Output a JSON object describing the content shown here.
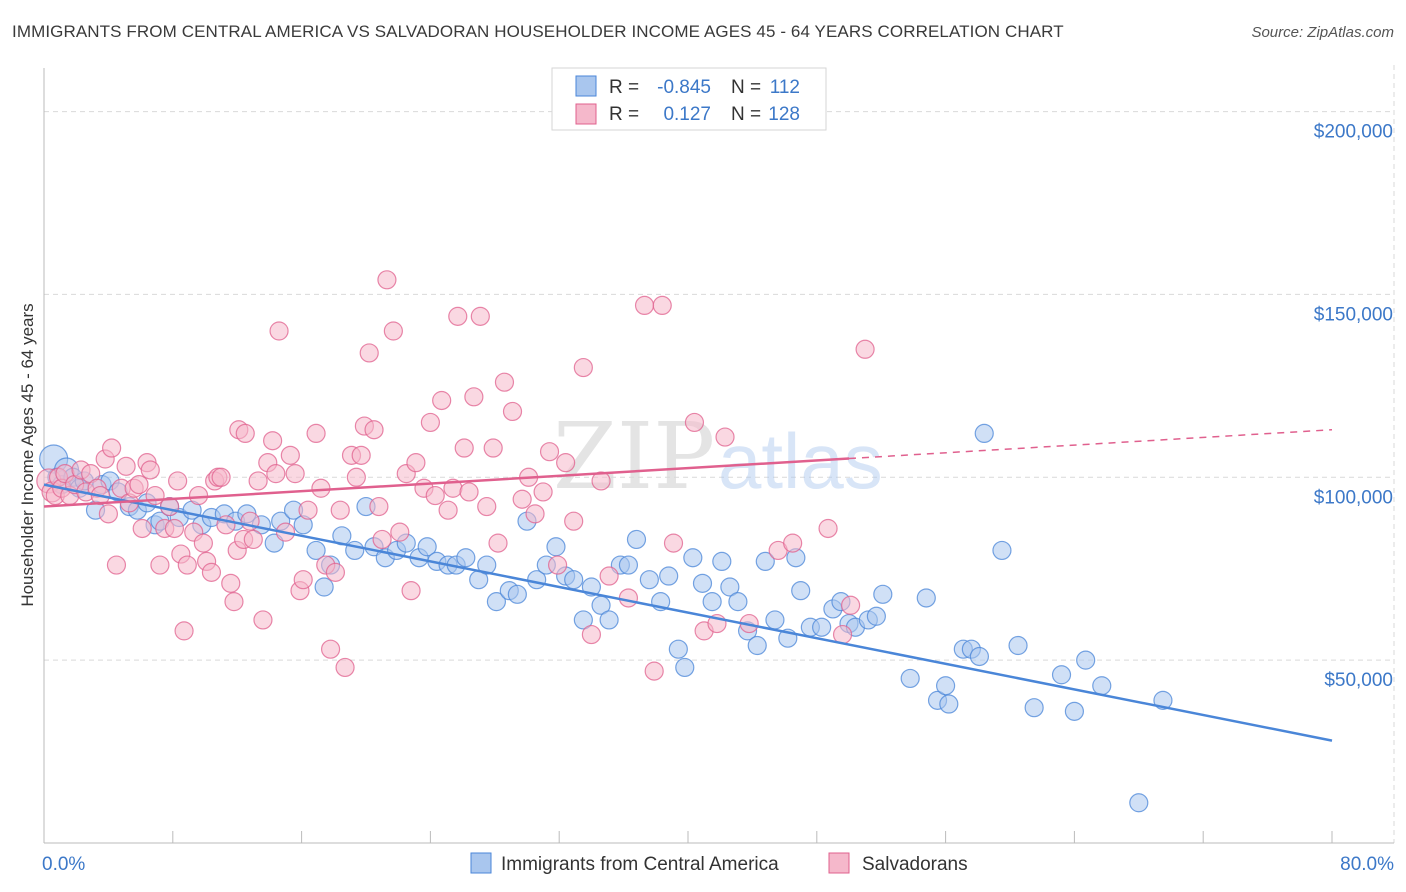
{
  "title": "IMMIGRANTS FROM CENTRAL AMERICA VS SALVADORAN HOUSEHOLDER INCOME AGES 45 - 64 YEARS CORRELATION CHART",
  "source": "Source: ZipAtlas.com",
  "watermark": {
    "zip": "ZIP",
    "atlas": "atlas"
  },
  "colors": {
    "blue": "#4a86d8",
    "blue_fill": "#a9c6ee",
    "pink": "#e0608e",
    "pink_fill": "#f5b8cb",
    "grid": "#d9d9d9",
    "axis_text": "#3c78c8"
  },
  "legend": {
    "rows": [
      {
        "r_label": "R =",
        "r_value": "-0.845",
        "n_label": "N =",
        "n_value": "112"
      },
      {
        "r_label": "R =",
        "r_value": "0.127",
        "n_label": "N =",
        "n_value": "128"
      }
    ]
  },
  "chart_data": {
    "type": "scatter",
    "xlabel": "",
    "ylabel": "Householder Income Ages 45 - 64 years",
    "xlim": [
      0,
      80
    ],
    "ylim": [
      0,
      210000
    ],
    "x_tick_labels": {
      "min": "0.0%",
      "max": "80.0%"
    },
    "y_ticks": [
      {
        "value": 50000,
        "label": "$50,000"
      },
      {
        "value": 100000,
        "label": "$100,000"
      },
      {
        "value": 150000,
        "label": "$150,000"
      },
      {
        "value": 200000,
        "label": "$200,000"
      }
    ],
    "grid": true,
    "legend_position": "top-center",
    "series": [
      {
        "name": "Immigrants from Central America",
        "r": -0.845,
        "n": 112,
        "trend": {
          "x0": 0,
          "y0": 98000,
          "x1": 80,
          "y1": 28000,
          "solid_until": 80
        },
        "points": [
          [
            0.6,
            105000
          ],
          [
            0.8,
            100000
          ],
          [
            1.1,
            98000
          ],
          [
            1.4,
            102000
          ],
          [
            1.8,
            100000
          ],
          [
            2.2,
            97000
          ],
          [
            2.5,
            99000
          ],
          [
            3.2,
            91000
          ],
          [
            3.6,
            98000
          ],
          [
            4.1,
            99000
          ],
          [
            4.6,
            96000
          ],
          [
            5.3,
            92000
          ],
          [
            5.8,
            91000
          ],
          [
            6.4,
            93000
          ],
          [
            6.9,
            87000
          ],
          [
            7.2,
            88000
          ],
          [
            7.8,
            92000
          ],
          [
            8.4,
            89000
          ],
          [
            9.2,
            91000
          ],
          [
            9.8,
            87000
          ],
          [
            10.4,
            89000
          ],
          [
            11.2,
            90000
          ],
          [
            11.9,
            88000
          ],
          [
            12.6,
            90000
          ],
          [
            13.5,
            87000
          ],
          [
            14.3,
            82000
          ],
          [
            14.7,
            88000
          ],
          [
            15.5,
            91000
          ],
          [
            16.1,
            87000
          ],
          [
            16.9,
            80000
          ],
          [
            17.4,
            70000
          ],
          [
            17.8,
            76000
          ],
          [
            18.5,
            84000
          ],
          [
            19.3,
            80000
          ],
          [
            20.0,
            92000
          ],
          [
            20.5,
            81000
          ],
          [
            21.2,
            78000
          ],
          [
            21.9,
            80000
          ],
          [
            22.5,
            82000
          ],
          [
            23.3,
            78000
          ],
          [
            23.8,
            81000
          ],
          [
            24.4,
            77000
          ],
          [
            25.1,
            76000
          ],
          [
            25.6,
            76000
          ],
          [
            26.2,
            78000
          ],
          [
            27.0,
            72000
          ],
          [
            27.5,
            76000
          ],
          [
            28.1,
            66000
          ],
          [
            28.9,
            69000
          ],
          [
            29.4,
            68000
          ],
          [
            30.0,
            88000
          ],
          [
            30.6,
            72000
          ],
          [
            31.2,
            76000
          ],
          [
            31.8,
            81000
          ],
          [
            32.4,
            73000
          ],
          [
            32.9,
            72000
          ],
          [
            33.5,
            61000
          ],
          [
            34.0,
            70000
          ],
          [
            34.6,
            65000
          ],
          [
            35.1,
            61000
          ],
          [
            35.8,
            76000
          ],
          [
            36.3,
            76000
          ],
          [
            36.8,
            83000
          ],
          [
            37.6,
            72000
          ],
          [
            38.3,
            66000
          ],
          [
            38.8,
            73000
          ],
          [
            39.4,
            53000
          ],
          [
            39.8,
            48000
          ],
          [
            40.3,
            78000
          ],
          [
            40.9,
            71000
          ],
          [
            41.5,
            66000
          ],
          [
            42.1,
            77000
          ],
          [
            42.6,
            70000
          ],
          [
            43.1,
            66000
          ],
          [
            43.7,
            58000
          ],
          [
            44.3,
            54000
          ],
          [
            44.8,
            77000
          ],
          [
            45.4,
            61000
          ],
          [
            46.2,
            56000
          ],
          [
            46.7,
            78000
          ],
          [
            47.0,
            69000
          ],
          [
            47.6,
            59000
          ],
          [
            48.3,
            59000
          ],
          [
            49.0,
            64000
          ],
          [
            49.5,
            66000
          ],
          [
            50.0,
            60000
          ],
          [
            50.4,
            59000
          ],
          [
            51.2,
            61000
          ],
          [
            51.7,
            62000
          ],
          [
            52.1,
            68000
          ],
          [
            53.8,
            45000
          ],
          [
            54.8,
            67000
          ],
          [
            55.5,
            39000
          ],
          [
            56.0,
            43000
          ],
          [
            56.2,
            38000
          ],
          [
            57.1,
            53000
          ],
          [
            57.6,
            53000
          ],
          [
            58.1,
            51000
          ],
          [
            58.4,
            112000
          ],
          [
            59.5,
            80000
          ],
          [
            60.5,
            54000
          ],
          [
            61.5,
            37000
          ],
          [
            63.2,
            46000
          ],
          [
            64.0,
            36000
          ],
          [
            64.7,
            50000
          ],
          [
            65.7,
            43000
          ],
          [
            68.0,
            11000
          ],
          [
            69.5,
            39000
          ]
        ]
      },
      {
        "name": "Salvadorans",
        "r": 0.127,
        "n": 128,
        "trend": {
          "x0": 0,
          "y0": 92000,
          "x1": 80,
          "y1": 113000,
          "solid_until": 50
        },
        "points": [
          [
            0.3,
            99000
          ],
          [
            0.5,
            96000
          ],
          [
            0.7,
            95000
          ],
          [
            0.9,
            100000
          ],
          [
            1.1,
            97000
          ],
          [
            1.3,
            101000
          ],
          [
            1.6,
            95000
          ],
          [
            1.9,
            98000
          ],
          [
            2.3,
            102000
          ],
          [
            2.6,
            96000
          ],
          [
            2.9,
            101000
          ],
          [
            3.3,
            97000
          ],
          [
            3.5,
            95000
          ],
          [
            3.8,
            105000
          ],
          [
            4.0,
            90000
          ],
          [
            4.2,
            108000
          ],
          [
            4.5,
            76000
          ],
          [
            4.8,
            97000
          ],
          [
            5.1,
            103000
          ],
          [
            5.3,
            93000
          ],
          [
            5.6,
            97000
          ],
          [
            5.9,
            98000
          ],
          [
            6.1,
            86000
          ],
          [
            6.4,
            104000
          ],
          [
            6.6,
            102000
          ],
          [
            6.9,
            95000
          ],
          [
            7.2,
            76000
          ],
          [
            7.5,
            86000
          ],
          [
            7.8,
            92000
          ],
          [
            8.1,
            86000
          ],
          [
            8.3,
            99000
          ],
          [
            8.5,
            79000
          ],
          [
            8.7,
            58000
          ],
          [
            8.9,
            76000
          ],
          [
            9.3,
            85000
          ],
          [
            9.6,
            95000
          ],
          [
            9.9,
            82000
          ],
          [
            10.1,
            77000
          ],
          [
            10.4,
            74000
          ],
          [
            10.6,
            99000
          ],
          [
            10.8,
            100000
          ],
          [
            11.0,
            100000
          ],
          [
            11.3,
            87000
          ],
          [
            11.6,
            71000
          ],
          [
            11.8,
            66000
          ],
          [
            12.0,
            80000
          ],
          [
            12.1,
            113000
          ],
          [
            12.4,
            83000
          ],
          [
            12.5,
            112000
          ],
          [
            12.8,
            88000
          ],
          [
            13.0,
            83000
          ],
          [
            13.3,
            99000
          ],
          [
            13.6,
            61000
          ],
          [
            13.9,
            104000
          ],
          [
            14.2,
            110000
          ],
          [
            14.4,
            101000
          ],
          [
            14.6,
            140000
          ],
          [
            15.0,
            85000
          ],
          [
            15.3,
            106000
          ],
          [
            15.6,
            101000
          ],
          [
            15.9,
            69000
          ],
          [
            16.1,
            72000
          ],
          [
            16.4,
            91000
          ],
          [
            16.9,
            112000
          ],
          [
            17.2,
            97000
          ],
          [
            17.5,
            76000
          ],
          [
            17.8,
            53000
          ],
          [
            18.1,
            74000
          ],
          [
            18.4,
            91000
          ],
          [
            18.7,
            48000
          ],
          [
            19.1,
            106000
          ],
          [
            19.4,
            100000
          ],
          [
            19.7,
            106000
          ],
          [
            19.9,
            114000
          ],
          [
            20.2,
            134000
          ],
          [
            20.5,
            113000
          ],
          [
            20.8,
            92000
          ],
          [
            21.0,
            83000
          ],
          [
            21.3,
            154000
          ],
          [
            21.7,
            140000
          ],
          [
            22.1,
            85000
          ],
          [
            22.5,
            101000
          ],
          [
            22.8,
            69000
          ],
          [
            23.1,
            104000
          ],
          [
            23.6,
            97000
          ],
          [
            24.0,
            115000
          ],
          [
            24.3,
            95000
          ],
          [
            24.7,
            121000
          ],
          [
            25.1,
            91000
          ],
          [
            25.4,
            97000
          ],
          [
            25.7,
            144000
          ],
          [
            26.1,
            108000
          ],
          [
            26.4,
            96000
          ],
          [
            26.7,
            122000
          ],
          [
            27.1,
            144000
          ],
          [
            27.5,
            92000
          ],
          [
            27.9,
            108000
          ],
          [
            28.2,
            82000
          ],
          [
            28.6,
            126000
          ],
          [
            29.1,
            118000
          ],
          [
            29.7,
            94000
          ],
          [
            30.1,
            100000
          ],
          [
            30.5,
            90000
          ],
          [
            31.0,
            96000
          ],
          [
            31.4,
            107000
          ],
          [
            31.9,
            76000
          ],
          [
            32.4,
            104000
          ],
          [
            32.9,
            88000
          ],
          [
            33.5,
            130000
          ],
          [
            34.0,
            57000
          ],
          [
            34.6,
            99000
          ],
          [
            35.1,
            73000
          ],
          [
            36.3,
            67000
          ],
          [
            37.3,
            147000
          ],
          [
            37.9,
            47000
          ],
          [
            38.4,
            147000
          ],
          [
            39.1,
            82000
          ],
          [
            40.4,
            115000
          ],
          [
            41.0,
            58000
          ],
          [
            41.8,
            60000
          ],
          [
            42.3,
            111000
          ],
          [
            43.8,
            60000
          ],
          [
            45.6,
            80000
          ],
          [
            46.5,
            82000
          ],
          [
            48.7,
            86000
          ],
          [
            49.6,
            57000
          ],
          [
            50.1,
            65000
          ],
          [
            51.0,
            135000
          ]
        ]
      }
    ]
  }
}
